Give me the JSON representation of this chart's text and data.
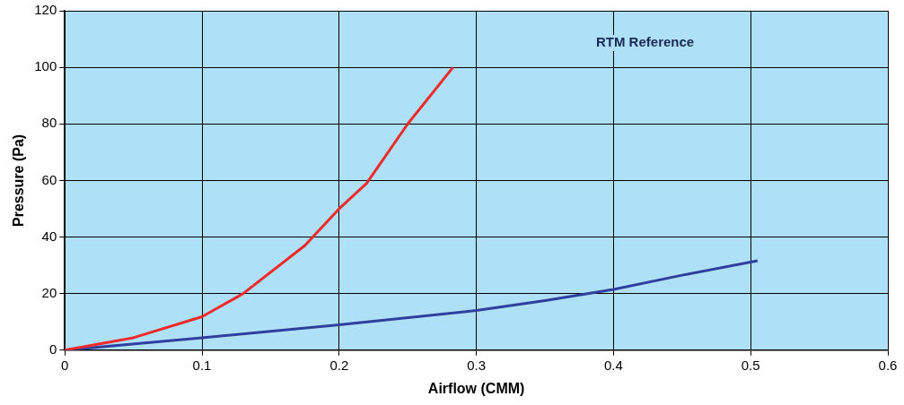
{
  "chart_data": {
    "type": "line",
    "xlabel": "Airflow (CMM)",
    "ylabel": "Pressure (Pa)",
    "annotations": [
      "RTM Reference"
    ],
    "series": [
      {
        "color": "#ee2a2a",
        "x": [
          0,
          0.05,
          0.1,
          0.13,
          0.175,
          0.2,
          0.22,
          0.25,
          0.283
        ],
        "values": [
          0,
          4.4,
          11.8,
          20,
          37,
          50,
          59,
          80,
          100
        ]
      },
      {
        "color": "#2e3f9e",
        "x": [
          0,
          0.1,
          0.2,
          0.3,
          0.35,
          0.4,
          0.45,
          0.505
        ],
        "values": [
          0,
          4.4,
          9,
          14,
          17.5,
          21.5,
          26.5,
          31.6
        ]
      }
    ],
    "xlim": [
      0,
      0.6
    ],
    "xticks": [
      0,
      0.1,
      0.2,
      0.3,
      0.4,
      0.5,
      0.6
    ],
    "ylim": [
      0,
      120
    ],
    "yticks": [
      0,
      20,
      40,
      60,
      80,
      100,
      120
    ],
    "grid": true,
    "legend": false,
    "marker": "none",
    "line_style": "solid"
  }
}
